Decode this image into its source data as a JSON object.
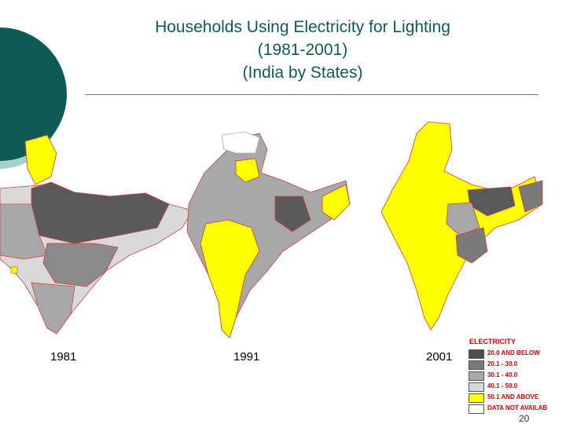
{
  "title": {
    "line1": "Households Using Electricity for Lighting",
    "line2": "(1981-2001)",
    "line3": "(India by States)"
  },
  "maps": [
    {
      "year": "1981"
    },
    {
      "year": "1991"
    },
    {
      "year": "2001"
    }
  ],
  "legend": {
    "title": "ELECTRICITY",
    "items": [
      {
        "label": "20.0 AND BELOW",
        "color": "#4d4d4d"
      },
      {
        "label": "20.1 - 30.0",
        "color": "#7a7a7a"
      },
      {
        "label": "30.1 - 40.0",
        "color": "#a8a8a8"
      },
      {
        "label": "40.1 - 50.0",
        "color": "#d9d9d9"
      },
      {
        "label": "50.1 AND ABOVE",
        "color": "#ffff00"
      },
      {
        "label": "DATA NOT AVAILAB",
        "color": "#ffffff"
      }
    ]
  },
  "page_number": "20",
  "colors": {
    "title": "#0e5a57",
    "deco_dark": "#0e5a57",
    "deco_light": "#a7d0ce",
    "legend_text": "#cc0000",
    "border": "#d04040"
  }
}
